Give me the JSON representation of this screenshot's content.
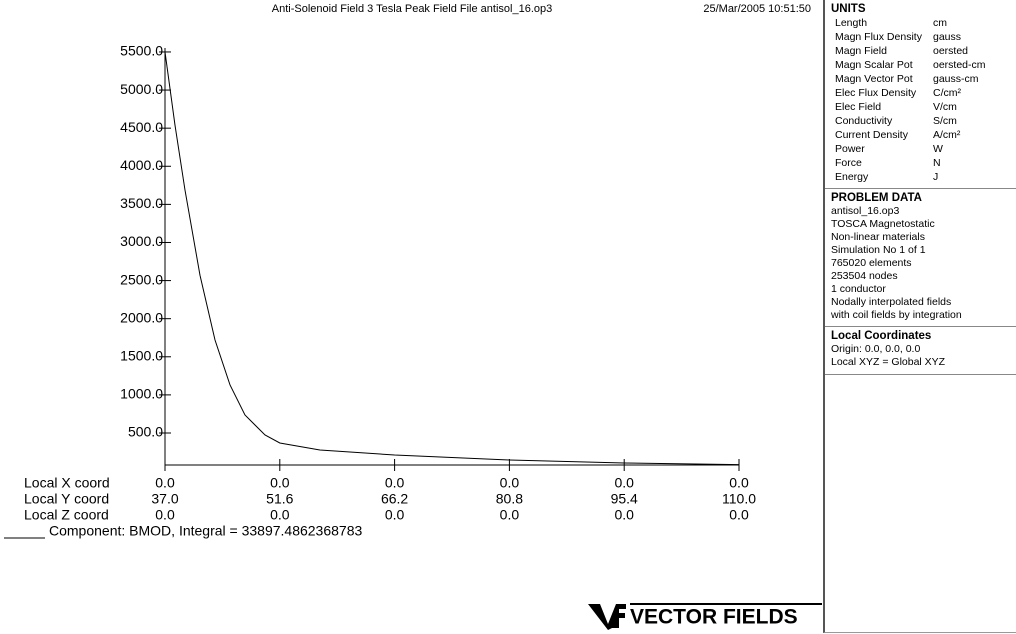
{
  "chart_data": {
    "type": "line",
    "title": "Anti-Solenoid Field   3 Tesla Peak Field File antisol_16.op3",
    "timestamp": "25/Mar/2005 10:51:50",
    "x": [
      37,
      38.27,
      39.54,
      41.45,
      43.36,
      45.27,
      47.17,
      49.72,
      51.6,
      56.7,
      66.2,
      80.8,
      95.4,
      110
    ],
    "series": [
      {
        "name": "Component: BMOD, Integral = 33897.4862368783",
        "color": "#000000",
        "values": [
          5500,
          4540,
          3690,
          2570,
          1720,
          1130,
          736,
          474,
          369,
          277,
          211,
          146,
          106,
          85
        ]
      }
    ],
    "xlim": [
      37,
      110
    ],
    "ylim": [
      80,
      5552
    ],
    "x_label": "Local Y coord",
    "xticks": [
      {
        "value": 37,
        "label": "37.0"
      },
      {
        "value": 51.6,
        "label": "51.6"
      },
      {
        "value": 66.2,
        "label": "66.2"
      },
      {
        "value": 80.8,
        "label": "80.8"
      },
      {
        "value": 95.4,
        "label": "95.4"
      },
      {
        "value": 110,
        "label": "110.0"
      }
    ],
    "extra_rows": [
      {
        "label": "Local X coord",
        "ticks": [
          "0.0",
          "0.0",
          "0.0",
          "0.0",
          "0.0",
          "0.0"
        ]
      },
      {
        "label": "Local Z coord",
        "ticks": [
          "0.0",
          "0.0",
          "0.0",
          "0.0",
          "0.0",
          "0.0"
        ]
      }
    ],
    "yticks": [
      {
        "value": 500,
        "label": "500.0"
      },
      {
        "value": 1000,
        "label": "1000.0"
      },
      {
        "value": 1500,
        "label": "1500.0"
      },
      {
        "value": 2000,
        "label": "2000.0"
      },
      {
        "value": 2500,
        "label": "2500.0"
      },
      {
        "value": 3000,
        "label": "3000.0"
      },
      {
        "value": 3500,
        "label": "3500.0"
      },
      {
        "value": 4000,
        "label": "4000.0"
      },
      {
        "value": 4500,
        "label": "4500.0"
      },
      {
        "value": 5000,
        "label": "5000.0"
      },
      {
        "value": 5500,
        "label": "5500.0"
      }
    ],
    "grid": false
  },
  "panel": {
    "units": {
      "title": "UNITS",
      "rows": [
        [
          "Length",
          "cm"
        ],
        [
          "Magn Flux Density",
          "gauss"
        ],
        [
          "Magn Field",
          "oersted"
        ],
        [
          "Magn Scalar Pot",
          "oersted-cm"
        ],
        [
          "Magn Vector Pot",
          "gauss-cm"
        ],
        [
          "Elec Flux Density",
          "C/cm²"
        ],
        [
          "Elec Field",
          "V/cm"
        ],
        [
          "Conductivity",
          "S/cm"
        ],
        [
          "Current Density",
          "A/cm²"
        ],
        [
          "Power",
          "W"
        ],
        [
          "Force",
          "N"
        ],
        [
          "Energy",
          "J"
        ]
      ]
    },
    "problem": {
      "title": "PROBLEM DATA",
      "lines": [
        "antisol_16.op3",
        "TOSCA Magnetostatic",
        "Non-linear materials",
        "Simulation No 1 of 1",
        "765020 elements",
        "253504 nodes",
        "1 conductor",
        "Nodally interpolated fields",
        "with coil fields by integration"
      ]
    },
    "coords": {
      "title": "Local Coordinates",
      "lines": [
        "Origin: 0.0, 0.0, 0.0",
        "Local XYZ = Global XYZ"
      ]
    }
  },
  "logo": "VECTOR FIELDS"
}
